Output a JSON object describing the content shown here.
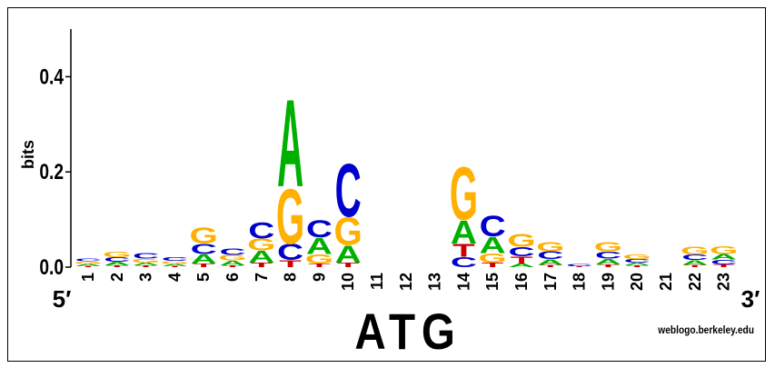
{
  "chart_data": {
    "type": "logo",
    "ylabel": "bits",
    "ylim": [
      0,
      0.5
    ],
    "yticks": [
      {
        "value": 0,
        "label": "0.0"
      },
      {
        "value": 0.2,
        "label": "0.2"
      },
      {
        "value": 0.4,
        "label": "0.4"
      }
    ],
    "categories": [
      "1",
      "2",
      "3",
      "4",
      "5",
      "6",
      "7",
      "8",
      "9",
      "10",
      "11",
      "12",
      "13",
      "14",
      "15",
      "16",
      "17",
      "18",
      "19",
      "20",
      "21",
      "22",
      "23"
    ],
    "colors": {
      "A": "#00b000",
      "C": "#0000cc",
      "G": "#ffb000",
      "T": "#cc0000"
    },
    "stacks": [
      [
        {
          "letter": "T",
          "height": 0.003
        },
        {
          "letter": "A",
          "height": 0.004
        },
        {
          "letter": "G",
          "height": 0.005
        },
        {
          "letter": "C",
          "height": 0.006
        }
      ],
      [
        {
          "letter": "T",
          "height": 0.004
        },
        {
          "letter": "A",
          "height": 0.007
        },
        {
          "letter": "C",
          "height": 0.01
        },
        {
          "letter": "G",
          "height": 0.012
        }
      ],
      [
        {
          "letter": "T",
          "height": 0.004
        },
        {
          "letter": "A",
          "height": 0.006
        },
        {
          "letter": "G",
          "height": 0.008
        },
        {
          "letter": "C",
          "height": 0.012
        }
      ],
      [
        {
          "letter": "T",
          "height": 0.003
        },
        {
          "letter": "A",
          "height": 0.004
        },
        {
          "letter": "G",
          "height": 0.006
        },
        {
          "letter": "C",
          "height": 0.008
        }
      ],
      [
        {
          "letter": "T",
          "height": 0.008
        },
        {
          "letter": "A",
          "height": 0.02
        },
        {
          "letter": "C",
          "height": 0.022
        },
        {
          "letter": "G",
          "height": 0.035
        }
      ],
      [
        {
          "letter": "T",
          "height": 0.004
        },
        {
          "letter": "A",
          "height": 0.01
        },
        {
          "letter": "G",
          "height": 0.012
        },
        {
          "letter": "C",
          "height": 0.014
        }
      ],
      [
        {
          "letter": "T",
          "height": 0.01
        },
        {
          "letter": "A",
          "height": 0.025
        },
        {
          "letter": "G",
          "height": 0.025
        },
        {
          "letter": "C",
          "height": 0.035
        }
      ],
      [
        {
          "letter": "T",
          "height": 0.015
        },
        {
          "letter": "C",
          "height": 0.035
        },
        {
          "letter": "G",
          "height": 0.12
        },
        {
          "letter": "A",
          "height": 0.19
        }
      ],
      [
        {
          "letter": "T",
          "height": 0.008
        },
        {
          "letter": "G",
          "height": 0.02
        },
        {
          "letter": "A",
          "height": 0.035
        },
        {
          "letter": "C",
          "height": 0.037
        }
      ],
      [
        {
          "letter": "T",
          "height": 0.01
        },
        {
          "letter": "A",
          "height": 0.037
        },
        {
          "letter": "G",
          "height": 0.06
        },
        {
          "letter": "C",
          "height": 0.115
        }
      ],
      [],
      [],
      [],
      [
        {
          "letter": "C",
          "height": 0.022
        },
        {
          "letter": "T",
          "height": 0.028
        },
        {
          "letter": "A",
          "height": 0.05
        },
        {
          "letter": "G",
          "height": 0.115
        }
      ],
      [
        {
          "letter": "T",
          "height": 0.01
        },
        {
          "letter": "G",
          "height": 0.02
        },
        {
          "letter": "A",
          "height": 0.035
        },
        {
          "letter": "C",
          "height": 0.045
        }
      ],
      [
        {
          "letter": "A",
          "height": 0.008
        },
        {
          "letter": "T",
          "height": 0.015
        },
        {
          "letter": "C",
          "height": 0.02
        },
        {
          "letter": "G",
          "height": 0.028
        }
      ],
      [
        {
          "letter": "T",
          "height": 0.005
        },
        {
          "letter": "A",
          "height": 0.012
        },
        {
          "letter": "C",
          "height": 0.016
        },
        {
          "letter": "G",
          "height": 0.02
        }
      ],
      [
        {
          "letter": "T",
          "height": 0.002
        },
        {
          "letter": "C",
          "height": 0.005
        }
      ],
      [
        {
          "letter": "T",
          "height": 0.006
        },
        {
          "letter": "A",
          "height": 0.012
        },
        {
          "letter": "C",
          "height": 0.015
        },
        {
          "letter": "G",
          "height": 0.02
        }
      ],
      [
        {
          "letter": "T",
          "height": 0.004
        },
        {
          "letter": "A",
          "height": 0.006
        },
        {
          "letter": "C",
          "height": 0.007
        },
        {
          "letter": "G",
          "height": 0.01
        }
      ],
      [],
      [
        {
          "letter": "T",
          "height": 0.005
        },
        {
          "letter": "A",
          "height": 0.01
        },
        {
          "letter": "C",
          "height": 0.012
        },
        {
          "letter": "G",
          "height": 0.016
        }
      ],
      [
        {
          "letter": "T",
          "height": 0.006
        },
        {
          "letter": "C",
          "height": 0.01
        },
        {
          "letter": "A",
          "height": 0.012
        },
        {
          "letter": "G",
          "height": 0.016
        }
      ]
    ],
    "start_label": "5′",
    "end_label": "3′",
    "annotation": "ATG",
    "credit": "weblogo.berkeley.edu"
  }
}
